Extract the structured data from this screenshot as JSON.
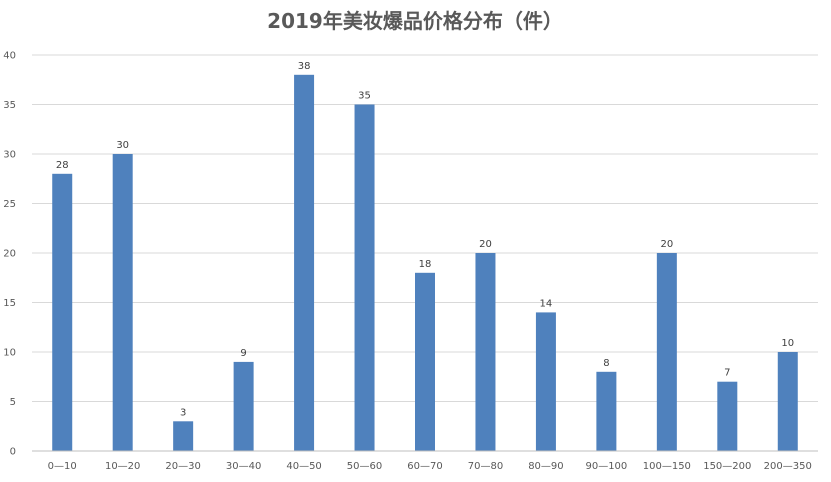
{
  "chart_data": {
    "type": "bar",
    "title": "2019年美妆爆品价格分布（件）",
    "categories": [
      "0—10",
      "10—20",
      "20—30",
      "30—40",
      "40—50",
      "50—60",
      "60—70",
      "70—80",
      "80—90",
      "90—100",
      "100—150",
      "150—200",
      "200—350"
    ],
    "values": [
      28,
      30,
      3,
      9,
      38,
      35,
      18,
      20,
      14,
      8,
      20,
      7,
      10
    ],
    "xlabel": "",
    "ylabel": "",
    "ylim": [
      0,
      40
    ],
    "yticks": [
      0,
      5,
      10,
      15,
      20,
      25,
      30,
      35,
      40
    ],
    "grid": true,
    "legend": "none",
    "bar_color": "#4f81bd"
  }
}
